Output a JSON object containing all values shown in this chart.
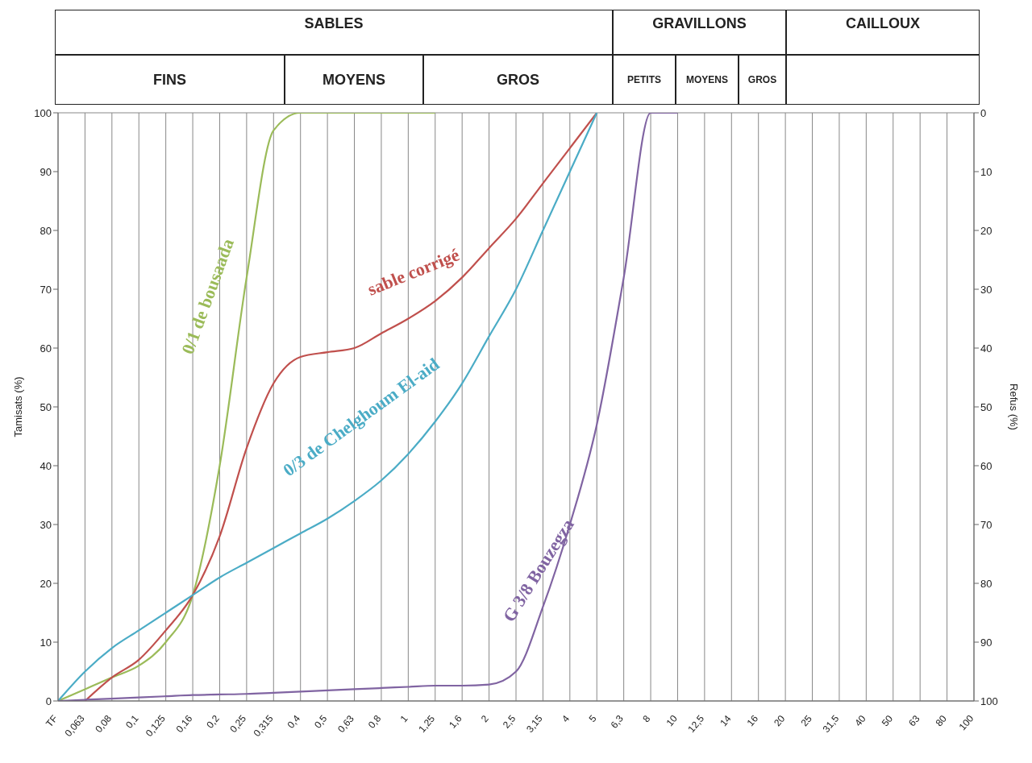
{
  "chart_data": {
    "type": "line",
    "ylabel": "Tamisats (%)",
    "y2label": "Refus (%)",
    "annotations": [
      "SABLES",
      "GRAVILLONS",
      "CAILLOUX",
      "FINS",
      "MOYENS",
      "GROS",
      "PETITS",
      "MOYENS",
      "GROS"
    ],
    "categories": [
      "TF",
      "0,063",
      "0,08",
      "0,1",
      "0,125",
      "0,16",
      "0,2",
      "0,25",
      "0,315",
      "0,4",
      "0,5",
      "0,63",
      "0,8",
      "1",
      "1,25",
      "1,6",
      "2",
      "2,5",
      "3,15",
      "4",
      "5",
      "6,3",
      "8",
      "10",
      "12,5",
      "14",
      "16",
      "20",
      "25",
      "31,5",
      "40",
      "50",
      "63",
      "80",
      "100"
    ],
    "series": [
      {
        "name": "0/1 de bousaada",
        "color": "#9bbb59",
        "values": [
          0,
          2,
          4,
          6,
          10,
          18,
          40,
          72,
          97,
          100,
          100,
          100,
          100,
          100,
          100,
          null,
          null,
          null,
          null,
          null,
          null,
          null,
          null,
          null,
          null,
          null,
          null,
          null,
          null,
          null,
          null,
          null,
          null,
          null,
          null
        ]
      },
      {
        "name": "sable  corrigé",
        "color": "#c0504d",
        "values": [
          null,
          0,
          4,
          7,
          12,
          18,
          28,
          43,
          54,
          58.5,
          59.3,
          60,
          62.5,
          65,
          68,
          72,
          77,
          82,
          88,
          94,
          100,
          null,
          null,
          null,
          null,
          null,
          null,
          null,
          null,
          null,
          null,
          null,
          null,
          null,
          null
        ]
      },
      {
        "name": "0/3 de Chelghoum El-aid",
        "color": "#4bacc6",
        "values": [
          0,
          5,
          9,
          12,
          15,
          18,
          21,
          23.5,
          26,
          28.5,
          31,
          34,
          37.5,
          42,
          47.5,
          54,
          62,
          70,
          80,
          90,
          100,
          null,
          null,
          null,
          null,
          null,
          null,
          null,
          null,
          null,
          null,
          null,
          null,
          null,
          null
        ]
      },
      {
        "name": "G 3/8 Bouzegza",
        "color": "#8064a2",
        "values": [
          0,
          0.2,
          0.4,
          0.6,
          0.8,
          1,
          1.1,
          1.2,
          1.4,
          1.6,
          1.8,
          2,
          2.2,
          2.4,
          2.6,
          2.6,
          2.8,
          5,
          16,
          30,
          47,
          72,
          100,
          100,
          null,
          null,
          null,
          null,
          null,
          null,
          null,
          null,
          null,
          null,
          null
        ]
      }
    ],
    "ylim": [
      0,
      100
    ],
    "yticks": [
      0,
      10,
      20,
      30,
      40,
      50,
      60,
      70,
      80,
      90,
      100
    ],
    "y2lim": [
      100,
      0
    ],
    "y2ticks": [
      0,
      10,
      20,
      30,
      40,
      50,
      60,
      70,
      80,
      90,
      100
    ],
    "grid": true,
    "marker": "none",
    "line_style": "solid"
  }
}
